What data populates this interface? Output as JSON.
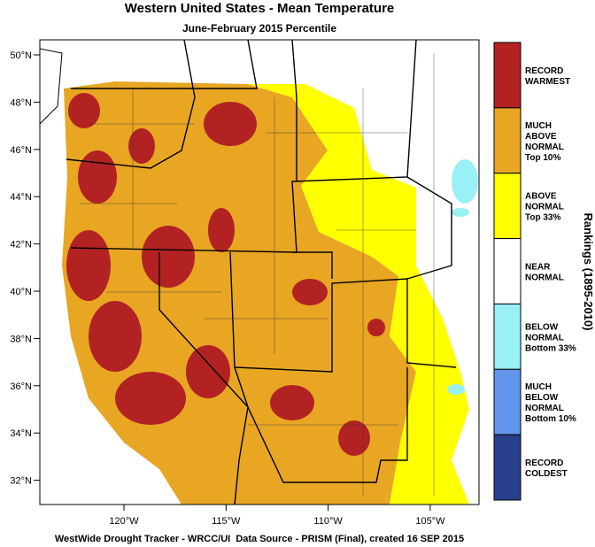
{
  "header": {
    "title": "Western United States - Mean Temperature",
    "subtitle": "June-February 2015 Percentile"
  },
  "map": {
    "lat_ticks": [
      "50°N",
      "48°N",
      "46°N",
      "44°N",
      "42°N",
      "40°N",
      "38°N",
      "36°N",
      "34°N",
      "32°N"
    ],
    "lon_ticks": [
      "120°W",
      "115°W",
      "110°W",
      "105°W"
    ]
  },
  "legend": {
    "title": "Rankings (1895-2010)",
    "items": [
      {
        "color": "#b22222",
        "lines": [
          "RECORD",
          "WARMEST"
        ]
      },
      {
        "color": "#e8a623",
        "lines": [
          "MUCH",
          "ABOVE",
          "NORMAL",
          "Top 10%"
        ]
      },
      {
        "color": "#ffff00",
        "lines": [
          "ABOVE",
          "NORMAL",
          "Top 33%"
        ]
      },
      {
        "color": "#ffffff",
        "lines": [
          "NEAR",
          "NORMAL"
        ]
      },
      {
        "color": "#99f0f5",
        "lines": [
          "BELOW",
          "NORMAL",
          "Bottom 33%"
        ]
      },
      {
        "color": "#6495ed",
        "lines": [
          "MUCH",
          "BELOW",
          "NORMAL",
          "Bottom 10%"
        ]
      },
      {
        "color": "#27408b",
        "lines": [
          "RECORD",
          "COLDEST"
        ]
      }
    ]
  },
  "footer": "WestWide Drought Tracker - WRCC/UI  Data Source - PRISM (Final), created 16 SEP 2015"
}
